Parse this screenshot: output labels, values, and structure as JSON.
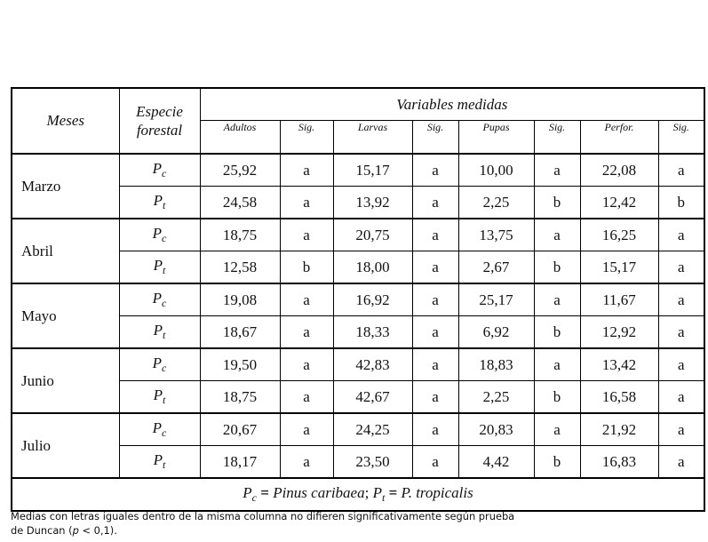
{
  "header": {
    "meses": "Meses",
    "especie": "Especie forestal",
    "variables": "Variables medidas",
    "columns": [
      "Adultos",
      "Sig.",
      "Larvas",
      "Sig.",
      "Pupas",
      "Sig.",
      "Perfor.",
      "Sig."
    ]
  },
  "species": [
    {
      "base": "P",
      "sub": "c"
    },
    {
      "base": "P",
      "sub": "t"
    }
  ],
  "months": [
    {
      "name": "Marzo",
      "rows": [
        [
          "25,92",
          "a",
          "15,17",
          "a",
          "10,00",
          "a",
          "22,08",
          "a"
        ],
        [
          "24,58",
          "a",
          "13,92",
          "a",
          "2,25",
          "b",
          "12,42",
          "b"
        ]
      ]
    },
    {
      "name": "Abril",
      "rows": [
        [
          "18,75",
          "a",
          "20,75",
          "a",
          "13,75",
          "a",
          "16,25",
          "a"
        ],
        [
          "12,58",
          "b",
          "18,00",
          "a",
          "2,67",
          "b",
          "15,17",
          "a"
        ]
      ]
    },
    {
      "name": "Mayo",
      "rows": [
        [
          "19,08",
          "a",
          "16,92",
          "a",
          "25,17",
          "a",
          "11,67",
          "a"
        ],
        [
          "18,67",
          "a",
          "18,33",
          "a",
          "6,92",
          "b",
          "12,92",
          "a"
        ]
      ]
    },
    {
      "name": "Junio",
      "rows": [
        [
          "19,50",
          "a",
          "42,83",
          "a",
          "18,83",
          "a",
          "13,42",
          "a"
        ],
        [
          "18,75",
          "a",
          "42,67",
          "a",
          "2,25",
          "b",
          "16,58",
          "a"
        ]
      ]
    },
    {
      "name": "Julio",
      "rows": [
        [
          "20,67",
          "a",
          "24,25",
          "a",
          "20,83",
          "a",
          "21,92",
          "a"
        ],
        [
          "18,17",
          "a",
          "23,50",
          "a",
          "4,42",
          "b",
          "16,83",
          "a"
        ]
      ]
    }
  ],
  "legend": {
    "parts": [
      {
        "text": "P",
        "style": "i"
      },
      {
        "text": "c",
        "style": "sub"
      },
      {
        "text": " = ",
        "style": "b"
      },
      {
        "text": "Pinus caribaea",
        "style": "i"
      },
      {
        "text": "; ",
        "style": "n"
      },
      {
        "text": "P",
        "style": "i"
      },
      {
        "text": "t",
        "style": "sub"
      },
      {
        "text": " = ",
        "style": "b"
      },
      {
        "text": "P. tropicalis",
        "style": "i"
      }
    ]
  },
  "note": {
    "lines": [
      [
        {
          "text": "Medias con letras iguales dentro de la misma columna no difieren significativamente según prueba",
          "style": "n"
        }
      ],
      [
        {
          "text": "de Duncan (",
          "style": "n"
        },
        {
          "text": "p",
          "style": "i"
        },
        {
          "text": " < 0,1).",
          "style": "n"
        }
      ]
    ]
  }
}
